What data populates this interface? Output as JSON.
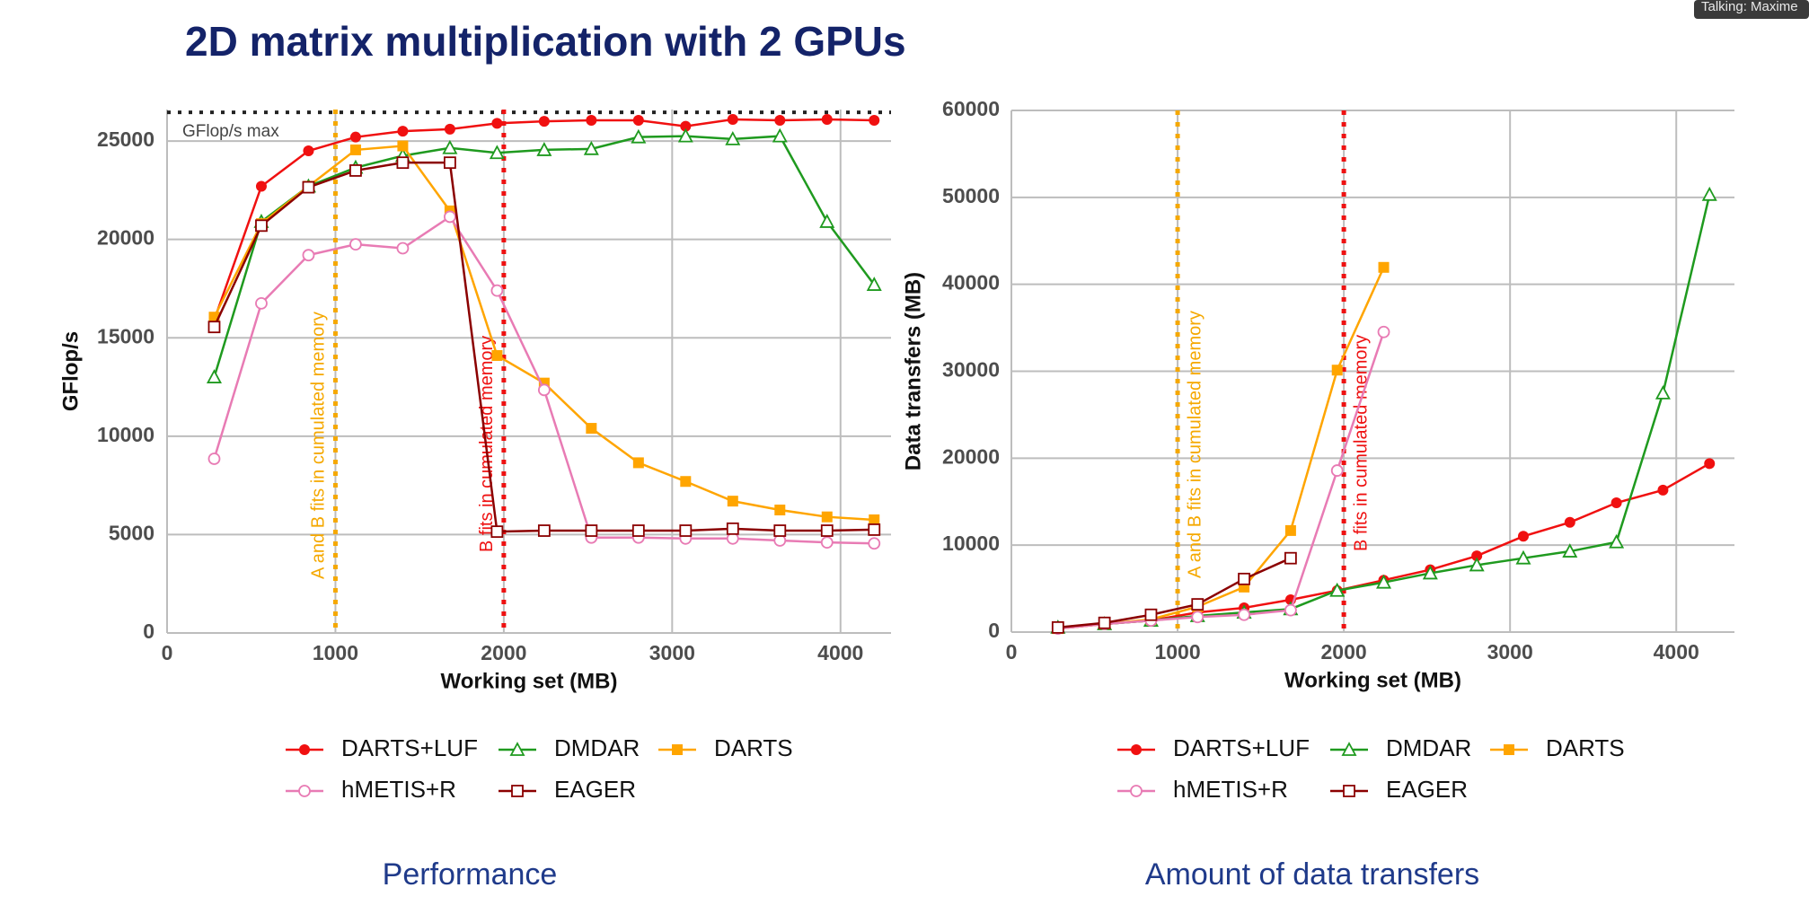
{
  "slide_title": "2D matrix multiplication with 2 GPUs",
  "speaker_badge": "Talking: Maxime",
  "chart_data": [
    {
      "type": "line",
      "caption": "Performance",
      "x_label": "Working set (MB)",
      "y_label": "GFlop/s",
      "x": [
        280,
        560,
        840,
        1120,
        1400,
        1680,
        1960,
        2240,
        2520,
        2800,
        3080,
        3360,
        3640,
        3920,
        4200
      ],
      "xlim": [
        0,
        4300
      ],
      "ylim": [
        0,
        26600
      ],
      "xticks": [
        0,
        1000,
        2000,
        3000,
        4000
      ],
      "yticks": [
        0,
        5000,
        10000,
        15000,
        20000,
        25000
      ],
      "grid": true,
      "legend": "bottom",
      "hlines": [
        {
          "value": 26460,
          "label": "GFlop/s max",
          "color": "#222222"
        }
      ],
      "vlines": [
        {
          "value": 1000,
          "label": "A and B fits in cumulated memory",
          "color": "#f5a800",
          "side": "left"
        },
        {
          "value": 2000,
          "label": "B fits in cumulated memory",
          "color": "#ee1111",
          "side": "left"
        }
      ],
      "series": [
        {
          "name": "DARTS+LUF",
          "color": "#f01010",
          "marker": "filled-circle",
          "values": [
            15900,
            22700,
            24500,
            25200,
            25500,
            25600,
            25900,
            26000,
            26050,
            26050,
            25750,
            26100,
            26050,
            26100,
            26050
          ]
        },
        {
          "name": "DMDAR",
          "color": "#1f9a1f",
          "marker": "open-triangle",
          "values": [
            13000,
            20900,
            22700,
            23650,
            24250,
            24650,
            24400,
            24550,
            24600,
            25200,
            25250,
            25100,
            25250,
            20900,
            17700
          ]
        },
        {
          "name": "DARTS",
          "color": "#ffa500",
          "marker": "filled-square",
          "values": [
            16050,
            20800,
            22700,
            24550,
            24750,
            21450,
            14100,
            12700,
            10400,
            8650,
            7700,
            6700,
            6250,
            5900,
            5750
          ]
        },
        {
          "name": "hMETIS+R",
          "color": "#e87bb4",
          "marker": "open-circle",
          "values": [
            8850,
            16750,
            19200,
            19750,
            19550,
            21150,
            17400,
            12350,
            4850,
            4850,
            4800,
            4800,
            4700,
            4600,
            4550
          ]
        },
        {
          "name": "EAGER",
          "color": "#8b0000",
          "marker": "open-square",
          "values": [
            15550,
            20700,
            22650,
            23500,
            23900,
            23900,
            5150,
            5200,
            5200,
            5200,
            5200,
            5300,
            5200,
            5200,
            5250
          ]
        }
      ]
    },
    {
      "type": "line",
      "caption": "Amount of data transfers",
      "x_label": "Working set (MB)",
      "y_label": "Data transfers (MB)",
      "x": [
        280,
        560,
        840,
        1120,
        1400,
        1680,
        1960,
        2240,
        2520,
        2800,
        3080,
        3360,
        3640,
        3920,
        4200
      ],
      "xlim": [
        0,
        4350
      ],
      "ylim": [
        0,
        60000
      ],
      "xticks": [
        0,
        1000,
        2000,
        3000,
        4000
      ],
      "yticks": [
        0,
        10000,
        20000,
        30000,
        40000,
        50000,
        60000
      ],
      "grid": true,
      "legend": "bottom",
      "vlines": [
        {
          "value": 1000,
          "label": "A and B fits in cumulated memory",
          "color": "#f5a800",
          "side": "right"
        },
        {
          "value": 2000,
          "label": "B fits in cumulated memory",
          "color": "#ee1111",
          "side": "right"
        }
      ],
      "series": [
        {
          "name": "DARTS+LUF",
          "color": "#f01010",
          "marker": "filled-circle",
          "values": [
            400,
            930,
            1330,
            2260,
            2790,
            3720,
            4780,
            5970,
            7170,
            8760,
            11020,
            12620,
            14870,
            16330,
            19380
          ]
        },
        {
          "name": "DMDAR",
          "color": "#1f9a1f",
          "marker": "open-triangle",
          "values": [
            530,
            930,
            1330,
            1860,
            2260,
            2650,
            4780,
            5710,
            6770,
            7700,
            8500,
            9290,
            10350,
            27480,
            50310
          ]
        },
        {
          "name": "DARTS",
          "color": "#ffa500",
          "marker": "filled-square",
          "values": [
            400,
            930,
            1460,
            2920,
            5180,
            11680,
            30130,
            41950,
            null,
            null,
            null,
            null,
            null,
            null,
            null
          ]
        },
        {
          "name": "hMETIS+R",
          "color": "#e87bb4",
          "marker": "open-circle",
          "values": [
            400,
            930,
            1330,
            1730,
            1990,
            2520,
            18580,
            34520,
            null,
            null,
            null,
            null,
            null,
            null,
            null
          ]
        },
        {
          "name": "EAGER",
          "color": "#8b0000",
          "marker": "open-square",
          "values": [
            530,
            1060,
            1990,
            3190,
            6110,
            8500,
            null,
            null,
            null,
            null,
            null,
            null,
            null,
            null,
            null
          ]
        }
      ]
    }
  ]
}
